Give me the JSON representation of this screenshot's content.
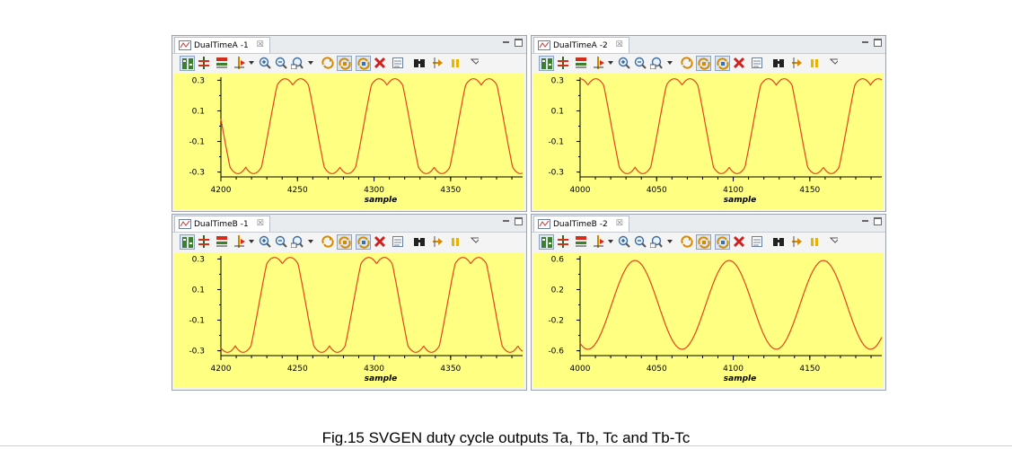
{
  "panels": [
    {
      "title": "DualTimeA -1",
      "yticks": [
        "0.3",
        "0.1",
        "-0.1",
        "-0.3"
      ],
      "xticks": [
        "4200",
        "4250",
        "4300",
        "4350"
      ],
      "xlabel": "sample"
    },
    {
      "title": "DualTimeA -2",
      "yticks": [
        "0.3",
        "0.1",
        "-0.1",
        "-0.3"
      ],
      "xticks": [
        "4000",
        "4050",
        "4100",
        "4150"
      ],
      "xlabel": "sample"
    },
    {
      "title": "DualTimeB -1",
      "yticks": [
        "0.3",
        "0.1",
        "-0.1",
        "-0.3"
      ],
      "xticks": [
        "4200",
        "4250",
        "4300",
        "4350"
      ],
      "xlabel": "sample"
    },
    {
      "title": "DualTimeB -2",
      "yticks": [
        "0.6",
        "0.2",
        "-0.2",
        "-0.6"
      ],
      "xticks": [
        "4000",
        "4050",
        "4100",
        "4150"
      ],
      "xlabel": "sample"
    }
  ],
  "caption": "Fig.15 SVGEN duty cycle outputs Ta, Tb, Tc and Tb-Tc",
  "colors": {
    "trace": "#e2451b",
    "plot_bg": "#ffff82"
  },
  "chart_data": [
    {
      "type": "line",
      "title": "DualTimeA -1",
      "xlabel": "sample",
      "ylabel": "",
      "xlim": [
        4200,
        4397
      ],
      "ylim": [
        -0.32,
        0.32
      ],
      "x_ticks": [
        4200,
        4250,
        4300,
        4350
      ],
      "y_ticks": [
        0.3,
        0.1,
        -0.1,
        -0.3
      ],
      "grid": false,
      "waveform": "svpwm-saddle",
      "period": 61.5,
      "amplitude": 0.31,
      "phase_deg": 175,
      "series": [
        {
          "values_described_by": "waveform/period/amplitude/phase"
        }
      ]
    },
    {
      "type": "line",
      "title": "DualTimeA -2",
      "xlabel": "sample",
      "ylabel": "",
      "xlim": [
        4000,
        4197
      ],
      "ylim": [
        -0.32,
        0.32
      ],
      "x_ticks": [
        4000,
        4050,
        4100,
        4150
      ],
      "y_ticks": [
        0.3,
        0.1,
        -0.1,
        -0.3
      ],
      "grid": false,
      "waveform": "svpwm-saddle",
      "period": 61.5,
      "amplitude": 0.31,
      "phase_deg": 60,
      "series": [
        {
          "values_described_by": "waveform/period/amplitude/phase"
        }
      ]
    },
    {
      "type": "line",
      "title": "DualTimeB -1",
      "xlabel": "sample",
      "ylabel": "",
      "xlim": [
        4200,
        4397
      ],
      "ylim": [
        -0.32,
        0.32
      ],
      "x_ticks": [
        4200,
        4250,
        4300,
        4350
      ],
      "y_ticks": [
        0.3,
        0.1,
        -0.1,
        -0.3
      ],
      "grid": false,
      "waveform": "svpwm-saddle",
      "period": 61.5,
      "amplitude": 0.31,
      "phase_deg": 215,
      "series": [
        {
          "values_described_by": "waveform/period/amplitude/phase"
        }
      ]
    },
    {
      "type": "line",
      "title": "DualTimeB -2",
      "xlabel": "sample",
      "ylabel": "",
      "xlim": [
        4000,
        4197
      ],
      "ylim": [
        -0.64,
        0.64
      ],
      "x_ticks": [
        4000,
        4050,
        4100,
        4150
      ],
      "y_ticks": [
        0.6,
        0.2,
        -0.2,
        -0.6
      ],
      "grid": false,
      "waveform": "sine",
      "period": 61.5,
      "amplitude": 0.58,
      "phase_deg": 240,
      "series": [
        {
          "values_described_by": "waveform/period/amplitude/phase"
        }
      ]
    }
  ]
}
